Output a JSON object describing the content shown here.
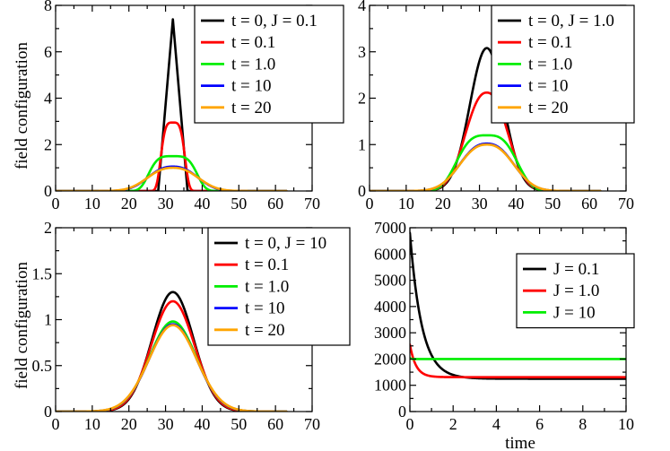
{
  "figure": {
    "ylabel_top": "field configuration",
    "ylabel_bottom": "field configuration",
    "xlabel_time": "time"
  },
  "chart_data": [
    {
      "type": "line",
      "id": "p1",
      "xlim": [
        0,
        70
      ],
      "ylim": [
        0,
        8
      ],
      "xticks": [
        "0",
        "10",
        "20",
        "30",
        "40",
        "50",
        "60",
        "70"
      ],
      "yticks": [
        "0",
        "2",
        "4",
        "6",
        "8"
      ],
      "legend_position": "top-right",
      "series": [
        {
          "name": "t = 0, J = 0.1",
          "color": "#000000",
          "shape": "triangle",
          "amplitude": 7.4,
          "center": 32,
          "halfwidth": 4,
          "start": 0,
          "end": 63
        },
        {
          "name": "t = 0.1",
          "color": "#ff0000",
          "shape": "flattop",
          "amplitude": 2.95,
          "center": 32,
          "sigma": 3.6,
          "power": 4,
          "start": 0,
          "end": 63
        },
        {
          "name": "t = 1.0",
          "color": "#00ee00",
          "shape": "flattop",
          "amplitude": 1.5,
          "center": 32,
          "sigma": 7.2,
          "power": 4,
          "start": 0,
          "end": 63
        },
        {
          "name": "t = 10",
          "color": "#0000ff",
          "shape": "smooth",
          "amplitude": 1.05,
          "center": 32,
          "sigma": 8.5,
          "power": 2.4,
          "start": 0,
          "end": 63
        },
        {
          "name": "t = 20",
          "color": "#ffa500",
          "shape": "smooth",
          "amplitude": 1.0,
          "center": 32,
          "sigma": 8.8,
          "power": 2.4,
          "start": 0,
          "end": 63
        }
      ]
    },
    {
      "type": "line",
      "id": "p2",
      "xlim": [
        0,
        70
      ],
      "ylim": [
        0,
        4
      ],
      "xticks": [
        "0",
        "10",
        "20",
        "30",
        "40",
        "50",
        "60",
        "70"
      ],
      "yticks": [
        "0",
        "1",
        "2",
        "3",
        "4"
      ],
      "legend_position": "top-right",
      "series": [
        {
          "name": "t = 0, J = 1.0",
          "color": "#000000",
          "shape": "smooth",
          "amplitude": 3.08,
          "center": 32,
          "sigma": 6.5,
          "power": 2,
          "start": 0,
          "end": 63
        },
        {
          "name": "t = 0.1",
          "color": "#ff0000",
          "shape": "smooth",
          "amplitude": 2.12,
          "center": 32,
          "sigma": 7.6,
          "power": 2.3,
          "start": 0,
          "end": 63
        },
        {
          "name": "t = 1.0",
          "color": "#00ee00",
          "shape": "flattop",
          "amplitude": 1.2,
          "center": 32,
          "sigma": 9.5,
          "power": 3.2,
          "start": 0,
          "end": 63
        },
        {
          "name": "t = 10",
          "color": "#0000ff",
          "shape": "smooth",
          "amplitude": 1.02,
          "center": 32,
          "sigma": 9.3,
          "power": 2.4,
          "start": 0,
          "end": 63
        },
        {
          "name": "t = 20",
          "color": "#ffa500",
          "shape": "smooth",
          "amplitude": 1.0,
          "center": 32,
          "sigma": 9.4,
          "power": 2.4,
          "start": 0,
          "end": 63
        }
      ]
    },
    {
      "type": "line",
      "id": "p3",
      "xlim": [
        0,
        70
      ],
      "ylim": [
        0,
        2
      ],
      "xticks": [
        "0",
        "10",
        "20",
        "30",
        "40",
        "50",
        "60",
        "70"
      ],
      "yticks": [
        "0",
        "0.5",
        "1",
        "1.5",
        "2"
      ],
      "legend_position": "top-right",
      "series": [
        {
          "name": "t = 0, J = 10",
          "color": "#000000",
          "shape": "smooth",
          "amplitude": 1.3,
          "center": 32,
          "sigma": 8.0,
          "power": 2,
          "start": 0,
          "end": 63
        },
        {
          "name": "t = 0.1",
          "color": "#ff0000",
          "shape": "smooth",
          "amplitude": 1.2,
          "center": 32,
          "sigma": 8.3,
          "power": 2,
          "start": 0,
          "end": 63
        },
        {
          "name": "t = 1.0",
          "color": "#00ee00",
          "shape": "smooth",
          "amplitude": 0.98,
          "center": 32,
          "sigma": 9.0,
          "power": 2,
          "start": 0,
          "end": 63
        },
        {
          "name": "t = 10",
          "color": "#0000ff",
          "shape": "smooth",
          "amplitude": 0.95,
          "center": 32,
          "sigma": 9.1,
          "power": 2,
          "start": 0,
          "end": 63
        },
        {
          "name": "t = 20",
          "color": "#ffa500",
          "shape": "smooth",
          "amplitude": 0.94,
          "center": 32,
          "sigma": 9.2,
          "power": 2,
          "start": 0,
          "end": 63
        }
      ]
    },
    {
      "type": "line",
      "id": "p4",
      "xlabel": "time",
      "xlim": [
        0,
        10
      ],
      "ylim": [
        0,
        7000
      ],
      "xticks": [
        "0",
        "2",
        "4",
        "6",
        "8",
        "10"
      ],
      "yticks": [
        "0",
        "1000",
        "2000",
        "3000",
        "4000",
        "5000",
        "6000",
        "7000"
      ],
      "legend_position": "upper-right",
      "series": [
        {
          "name": "J = 0.1",
          "color": "#000000",
          "shape": "decay",
          "start_value": 6800,
          "end_value": 1250,
          "tau": 0.55,
          "tmax": 10
        },
        {
          "name": "J = 1.0",
          "color": "#ff0000",
          "shape": "decay",
          "start_value": 2550,
          "end_value": 1310,
          "tau": 0.28,
          "tmax": 10
        },
        {
          "name": "J = 10",
          "color": "#00ee00",
          "shape": "decay",
          "start_value": 2040,
          "end_value": 2000,
          "tau": 0.05,
          "tmax": 10
        }
      ]
    }
  ]
}
